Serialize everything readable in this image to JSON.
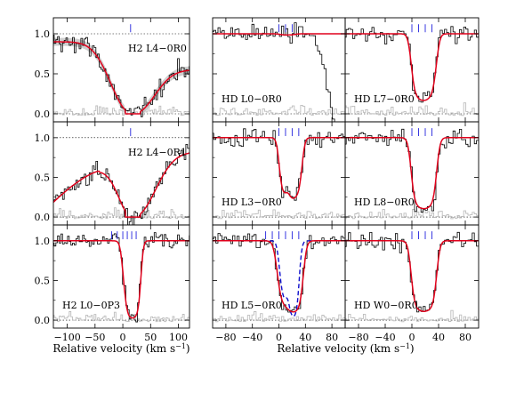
{
  "chart_data": {
    "type": "line",
    "description_axes": {
      "left_x": {
        "label": "Relative velocity (km s",
        "label_sup": "−1",
        "label_close": ")",
        "range": [
          -125,
          120
        ],
        "ticks": [
          -100,
          -50,
          0,
          50,
          100
        ]
      },
      "right_x": {
        "label": "Relative velocity (km s",
        "label_sup": "−1",
        "label_close": ")",
        "range": [
          -100,
          100
        ],
        "ticks": [
          -80,
          -40,
          0,
          40,
          80
        ]
      },
      "y": {
        "range": [
          -0.1,
          1.2
        ],
        "ticks": [
          "0.0",
          "0.5",
          "1.0"
        ]
      }
    },
    "panels": [
      {
        "id": "h2-l4-0r0",
        "col": 0,
        "row": 0,
        "label": "H2 L4−0R0",
        "label_pos": "top",
        "kind": "h2wide",
        "center": 18,
        "width": 52,
        "core": 14,
        "err_band": true,
        "dotted_top": true,
        "markers": [
          14
        ]
      },
      {
        "id": "h2-l4-0r1",
        "col": 0,
        "row": 1,
        "label": "H2 L4−0R1",
        "label_pos": "top",
        "kind": "h2wide",
        "center": 18,
        "width": 60,
        "core": 14,
        "err_band": false,
        "dotted_top": true,
        "markers": [
          14
        ],
        "slope": true
      },
      {
        "id": "h2-l0-0p3",
        "col": 0,
        "row": 2,
        "label": "H2 L0−0P3",
        "label_pos": "bottom",
        "kind": "narrow",
        "components": [
          [
            8,
            0.35,
            6
          ],
          [
            14,
            0.55,
            5
          ],
          [
            20,
            0.6,
            5
          ],
          [
            26,
            0.4,
            5
          ]
        ],
        "markers": [
          -20,
          -10,
          0,
          8,
          16,
          24
        ],
        "depth": 0.92
      },
      {
        "id": "hd-l0-0r0",
        "col": 1,
        "row": 0,
        "label": "HD L0−0R0",
        "label_pos": "bottom",
        "kind": "narrow",
        "components": [
          [
            8,
            0.06,
            6
          ],
          [
            18,
            0.06,
            6
          ]
        ],
        "markers": [
          0,
          10,
          20
        ],
        "depth": 0.06,
        "noisy_drop": true
      },
      {
        "id": "hd-l3-0r0",
        "col": 1,
        "row": 1,
        "label": "HD L3−0R0",
        "label_pos": "bottom",
        "kind": "narrow",
        "components": [
          [
            8,
            0.55,
            5
          ],
          [
            20,
            0.7,
            5
          ],
          [
            28,
            0.45,
            5
          ]
        ],
        "markers": [
          0,
          10,
          20,
          30
        ],
        "depth": 0.75
      },
      {
        "id": "hd-l5-0r0",
        "col": 1,
        "row": 2,
        "label": "HD L5−0R0",
        "label_pos": "bottom",
        "kind": "narrow",
        "components": [
          [
            8,
            0.55,
            7
          ],
          [
            20,
            0.75,
            6
          ],
          [
            28,
            0.55,
            6
          ]
        ],
        "markers": [
          -20,
          -10,
          0,
          10,
          20,
          30
        ],
        "depth": 0.85,
        "dashed": true
      },
      {
        "id": "hd-l7-0r0",
        "col": 2,
        "row": 0,
        "label": "HD L7−0R0",
        "label_pos": "bottom",
        "kind": "narrow",
        "components": [
          [
            8,
            0.55,
            6
          ],
          [
            18,
            0.75,
            6
          ],
          [
            28,
            0.5,
            6
          ]
        ],
        "markers": [
          0,
          10,
          20,
          30
        ],
        "depth": 0.8
      },
      {
        "id": "hd-l8-0r0",
        "col": 2,
        "row": 1,
        "label": "HD L8−0R0",
        "label_pos": "bottom",
        "kind": "narrow",
        "components": [
          [
            8,
            0.6,
            6
          ],
          [
            18,
            0.8,
            6
          ],
          [
            28,
            0.6,
            6
          ]
        ],
        "markers": [
          0,
          10,
          20,
          30
        ],
        "depth": 0.85
      },
      {
        "id": "hd-w0-0r0",
        "col": 2,
        "row": 2,
        "label": "HD W0−0R0",
        "label_pos": "bottom",
        "kind": "narrow",
        "components": [
          [
            8,
            0.6,
            6
          ],
          [
            18,
            0.75,
            6
          ],
          [
            28,
            0.6,
            6
          ]
        ],
        "markers": [
          0,
          10,
          20,
          30
        ],
        "depth": 0.85
      }
    ],
    "colors": {
      "data": "#000000",
      "residual": "#bdbdbd",
      "fit": "#e0001b",
      "fit_band": "#f2b8bf",
      "err_band": "#cfcfcf",
      "marker": "#2222dd",
      "dashed": "#1010cc"
    }
  }
}
